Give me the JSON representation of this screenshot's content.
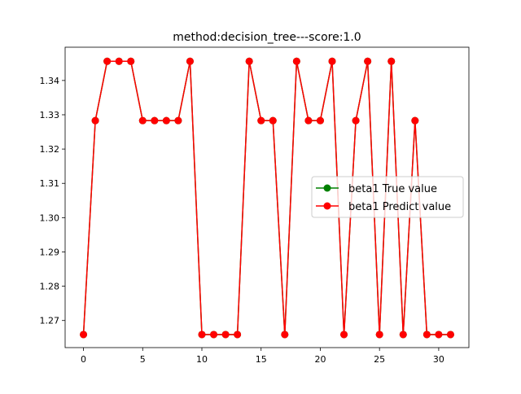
{
  "chart_data": {
    "type": "line",
    "title": "method:decision_tree---score:1.0",
    "xlabel": "",
    "ylabel": "",
    "xlim": [
      -1.55,
      32.55
    ],
    "ylim": [
      1.2621,
      1.3497
    ],
    "xticks": [
      0,
      5,
      10,
      15,
      20,
      25,
      30
    ],
    "yticks": [
      1.27,
      1.28,
      1.29,
      1.3,
      1.31,
      1.32,
      1.33,
      1.34
    ],
    "ytick_labels": [
      "1.27",
      "1.28",
      "1.29",
      "1.30",
      "1.31",
      "1.32",
      "1.33",
      "1.34"
    ],
    "grid": false,
    "legend_position": "center-right",
    "x": [
      0,
      1,
      2,
      3,
      4,
      5,
      6,
      7,
      8,
      9,
      10,
      11,
      12,
      13,
      14,
      15,
      16,
      17,
      18,
      19,
      20,
      21,
      22,
      23,
      24,
      25,
      26,
      27,
      28,
      29,
      30,
      31
    ],
    "series": [
      {
        "name": "beta1 True value",
        "color": "#008000",
        "marker": "circle",
        "values": [
          1.2659,
          1.3283,
          1.3456,
          1.3456,
          1.3456,
          1.3283,
          1.3283,
          1.3283,
          1.3283,
          1.3456,
          1.2659,
          1.2659,
          1.2659,
          1.2659,
          1.3456,
          1.3283,
          1.3283,
          1.2659,
          1.3456,
          1.3283,
          1.3283,
          1.3456,
          1.2659,
          1.3283,
          1.3456,
          1.2659,
          1.3456,
          1.2659,
          1.3283,
          1.2659,
          1.2659,
          1.2659
        ]
      },
      {
        "name": "beta1 Predict value",
        "color": "#ff0000",
        "marker": "circle",
        "values": [
          1.2659,
          1.3283,
          1.3456,
          1.3456,
          1.3456,
          1.3283,
          1.3283,
          1.3283,
          1.3283,
          1.3456,
          1.2659,
          1.2659,
          1.2659,
          1.2659,
          1.3456,
          1.3283,
          1.3283,
          1.2659,
          1.3456,
          1.3283,
          1.3283,
          1.3456,
          1.2659,
          1.3283,
          1.3456,
          1.2659,
          1.3456,
          1.2659,
          1.3283,
          1.2659,
          1.2659,
          1.2659
        ]
      }
    ]
  }
}
